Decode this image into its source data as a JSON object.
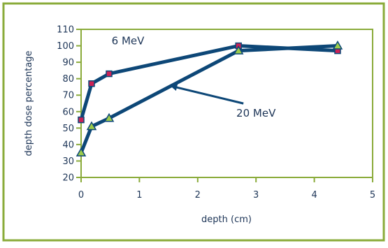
{
  "colors": {
    "frame": "#8aab3a",
    "axis": "#8aab3a",
    "series_line": "#0d4777",
    "marker_6mev_fill": "#cc2255",
    "marker_20mev_fill": "#9ccc4a",
    "marker_stroke": "#0d4777",
    "text": "#1d3557"
  },
  "chart_data": {
    "type": "line",
    "xlabel": "depth (cm)",
    "ylabel": "depth dose percentage",
    "xlim": [
      0,
      5
    ],
    "ylim": [
      20,
      110
    ],
    "x_ticks": [
      "0",
      "1",
      "2",
      "3",
      "4",
      "5"
    ],
    "y_ticks": [
      "20",
      "30",
      "40",
      "50",
      "60",
      "70",
      "80",
      "90",
      "100",
      "110"
    ],
    "grid": false,
    "legend": "none",
    "series": [
      {
        "name": "6 MeV",
        "marker": "square",
        "points": [
          [
            0,
            55
          ],
          [
            0.18,
            77
          ],
          [
            0.48,
            83
          ],
          [
            2.7,
            100
          ],
          [
            4.4,
            97
          ]
        ]
      },
      {
        "name": "20 MeV",
        "marker": "triangle",
        "points": [
          [
            0,
            35
          ],
          [
            0.18,
            51
          ],
          [
            0.48,
            56
          ],
          [
            2.7,
            97
          ],
          [
            4.4,
            100
          ]
        ]
      }
    ],
    "annotations": [
      {
        "text": "6 MeV",
        "series": 0,
        "x": 0.9,
        "y": 103
      },
      {
        "text": "20 MeV",
        "series": 1,
        "x": 3.0,
        "y": 59
      }
    ]
  }
}
